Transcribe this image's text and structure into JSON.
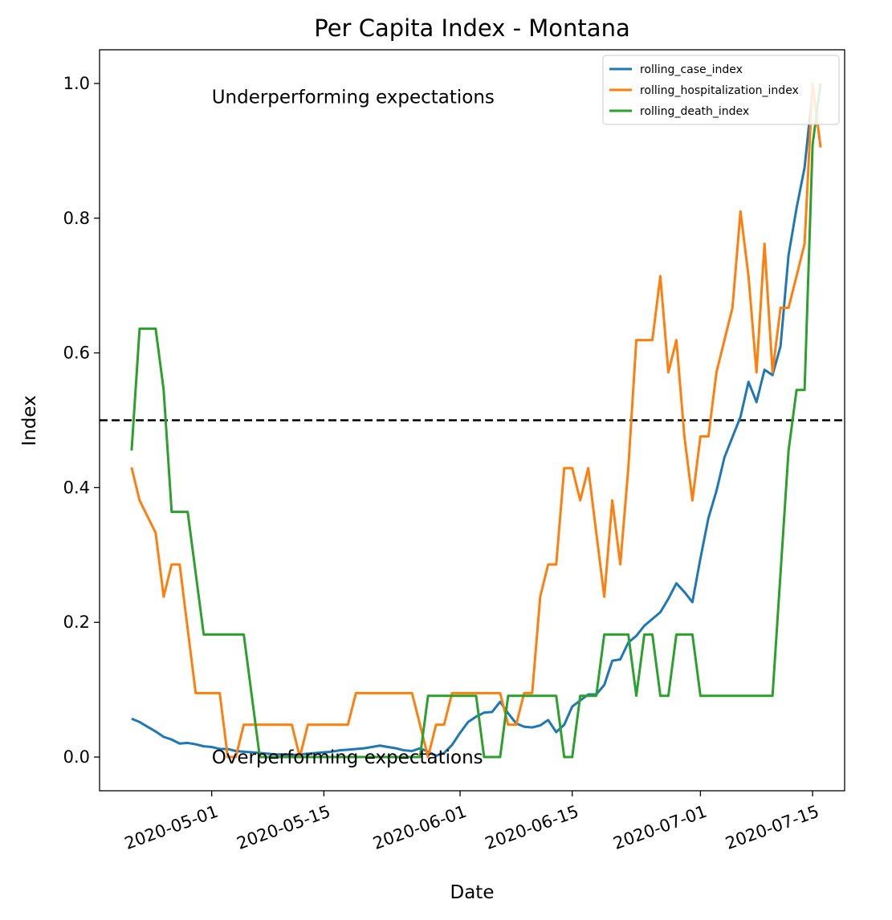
{
  "chart_data": {
    "type": "line",
    "title": "Per Capita Index - Montana",
    "xlabel": "Date",
    "ylabel": "Index",
    "xlim": [
      "2020-04-17",
      "2020-07-19"
    ],
    "ylim": [
      -0.05,
      1.05
    ],
    "x_ticks": [
      "2020-05-01",
      "2020-05-15",
      "2020-06-01",
      "2020-06-15",
      "2020-07-01",
      "2020-07-15"
    ],
    "x_tick_rotation": 20,
    "y_ticks": [
      "0.0",
      "0.2",
      "0.4",
      "0.6",
      "0.8",
      "1.0"
    ],
    "grid": false,
    "legend_position": "top-right",
    "reference_line": {
      "y": 0.5,
      "style": "dashed",
      "color": "#000000"
    },
    "annotations": [
      {
        "text": "Underperforming expectations",
        "x": "2020-05-01",
        "y": 0.98
      },
      {
        "text": "Overperforming expectations",
        "x": "2020-05-01",
        "y": 0.0
      }
    ],
    "series": [
      {
        "name": "rolling_case_index",
        "color": "#1f77b4",
        "points": [
          [
            "2020-04-21",
            0.057
          ],
          [
            "2020-04-22",
            0.052
          ],
          [
            "2020-04-23",
            0.045
          ],
          [
            "2020-04-24",
            0.038
          ],
          [
            "2020-04-25",
            0.03
          ],
          [
            "2020-04-26",
            0.026
          ],
          [
            "2020-04-27",
            0.02
          ],
          [
            "2020-04-28",
            0.021
          ],
          [
            "2020-04-29",
            0.019
          ],
          [
            "2020-04-30",
            0.016
          ],
          [
            "2020-05-01",
            0.015
          ],
          [
            "2020-05-02",
            0.012
          ],
          [
            "2020-05-03",
            0.012
          ],
          [
            "2020-05-04",
            0.009
          ],
          [
            "2020-05-05",
            0.008
          ],
          [
            "2020-05-06",
            0.007
          ],
          [
            "2020-05-07",
            0.006
          ],
          [
            "2020-05-08",
            0.005
          ],
          [
            "2020-05-09",
            0.004
          ],
          [
            "2020-05-10",
            0.004
          ],
          [
            "2020-05-11",
            0.003
          ],
          [
            "2020-05-12",
            0.004
          ],
          [
            "2020-05-13",
            0.005
          ],
          [
            "2020-05-14",
            0.006
          ],
          [
            "2020-05-15",
            0.007
          ],
          [
            "2020-05-16",
            0.008
          ],
          [
            "2020-05-17",
            0.01
          ],
          [
            "2020-05-18",
            0.011
          ],
          [
            "2020-05-19",
            0.012
          ],
          [
            "2020-05-20",
            0.013
          ],
          [
            "2020-05-21",
            0.015
          ],
          [
            "2020-05-22",
            0.017
          ],
          [
            "2020-05-23",
            0.015
          ],
          [
            "2020-05-24",
            0.013
          ],
          [
            "2020-05-25",
            0.01
          ],
          [
            "2020-05-26",
            0.009
          ],
          [
            "2020-05-27",
            0.013
          ],
          [
            "2020-05-28",
            0.008
          ],
          [
            "2020-05-29",
            0.002
          ],
          [
            "2020-05-30",
            0.006
          ],
          [
            "2020-05-31",
            0.018
          ],
          [
            "2020-06-01",
            0.036
          ],
          [
            "2020-06-02",
            0.052
          ],
          [
            "2020-06-03",
            0.06
          ],
          [
            "2020-06-04",
            0.066
          ],
          [
            "2020-06-05",
            0.067
          ],
          [
            "2020-06-06",
            0.082
          ],
          [
            "2020-06-07",
            0.065
          ],
          [
            "2020-06-08",
            0.05
          ],
          [
            "2020-06-09",
            0.045
          ],
          [
            "2020-06-10",
            0.044
          ],
          [
            "2020-06-11",
            0.047
          ],
          [
            "2020-06-12",
            0.055
          ],
          [
            "2020-06-13",
            0.037
          ],
          [
            "2020-06-14",
            0.048
          ],
          [
            "2020-06-15",
            0.075
          ],
          [
            "2020-06-16",
            0.084
          ],
          [
            "2020-06-17",
            0.093
          ],
          [
            "2020-06-18",
            0.093
          ],
          [
            "2020-06-19",
            0.107
          ],
          [
            "2020-06-20",
            0.143
          ],
          [
            "2020-06-21",
            0.145
          ],
          [
            "2020-06-22",
            0.17
          ],
          [
            "2020-06-23",
            0.18
          ],
          [
            "2020-06-24",
            0.195
          ],
          [
            "2020-06-25",
            0.205
          ],
          [
            "2020-06-26",
            0.215
          ],
          [
            "2020-06-27",
            0.235
          ],
          [
            "2020-06-28",
            0.258
          ],
          [
            "2020-06-29",
            0.245
          ],
          [
            "2020-06-30",
            0.23
          ],
          [
            "2020-07-01",
            0.295
          ],
          [
            "2020-07-02",
            0.355
          ],
          [
            "2020-07-03",
            0.395
          ],
          [
            "2020-07-04",
            0.445
          ],
          [
            "2020-07-05",
            0.475
          ],
          [
            "2020-07-06",
            0.505
          ],
          [
            "2020-07-07",
            0.557
          ],
          [
            "2020-07-08",
            0.527
          ],
          [
            "2020-07-09",
            0.575
          ],
          [
            "2020-07-10",
            0.567
          ],
          [
            "2020-07-11",
            0.61
          ],
          [
            "2020-07-12",
            0.745
          ],
          [
            "2020-07-13",
            0.815
          ],
          [
            "2020-07-14",
            0.875
          ],
          [
            "2020-07-15",
            0.99
          ]
        ]
      },
      {
        "name": "rolling_hospitalization_index",
        "color": "#ff7f0e",
        "points": [
          [
            "2020-04-21",
            0.43
          ],
          [
            "2020-04-22",
            0.381
          ],
          [
            "2020-04-23",
            0.357
          ],
          [
            "2020-04-24",
            0.333
          ],
          [
            "2020-04-25",
            0.238
          ],
          [
            "2020-04-26",
            0.286
          ],
          [
            "2020-04-27",
            0.286
          ],
          [
            "2020-04-28",
            0.19
          ],
          [
            "2020-04-29",
            0.095
          ],
          [
            "2020-04-30",
            0.095
          ],
          [
            "2020-05-01",
            0.095
          ],
          [
            "2020-05-02",
            0.095
          ],
          [
            "2020-05-03",
            0.0
          ],
          [
            "2020-05-04",
            0.0
          ],
          [
            "2020-05-05",
            0.048
          ],
          [
            "2020-05-06",
            0.048
          ],
          [
            "2020-05-07",
            0.048
          ],
          [
            "2020-05-08",
            0.048
          ],
          [
            "2020-05-09",
            0.048
          ],
          [
            "2020-05-10",
            0.048
          ],
          [
            "2020-05-11",
            0.048
          ],
          [
            "2020-05-12",
            0.0
          ],
          [
            "2020-05-13",
            0.048
          ],
          [
            "2020-05-14",
            0.048
          ],
          [
            "2020-05-15",
            0.048
          ],
          [
            "2020-05-16",
            0.048
          ],
          [
            "2020-05-17",
            0.048
          ],
          [
            "2020-05-18",
            0.048
          ],
          [
            "2020-05-19",
            0.095
          ],
          [
            "2020-05-20",
            0.095
          ],
          [
            "2020-05-21",
            0.095
          ],
          [
            "2020-05-22",
            0.095
          ],
          [
            "2020-05-23",
            0.095
          ],
          [
            "2020-05-24",
            0.095
          ],
          [
            "2020-05-25",
            0.095
          ],
          [
            "2020-05-26",
            0.095
          ],
          [
            "2020-05-27",
            0.048
          ],
          [
            "2020-05-28",
            0.0
          ],
          [
            "2020-05-29",
            0.048
          ],
          [
            "2020-05-30",
            0.048
          ],
          [
            "2020-05-31",
            0.095
          ],
          [
            "2020-06-01",
            0.095
          ],
          [
            "2020-06-02",
            0.095
          ],
          [
            "2020-06-03",
            0.095
          ],
          [
            "2020-06-04",
            0.095
          ],
          [
            "2020-06-05",
            0.095
          ],
          [
            "2020-06-06",
            0.095
          ],
          [
            "2020-06-07",
            0.048
          ],
          [
            "2020-06-08",
            0.048
          ],
          [
            "2020-06-09",
            0.095
          ],
          [
            "2020-06-10",
            0.095
          ],
          [
            "2020-06-11",
            0.238
          ],
          [
            "2020-06-12",
            0.286
          ],
          [
            "2020-06-13",
            0.286
          ],
          [
            "2020-06-14",
            0.429
          ],
          [
            "2020-06-15",
            0.429
          ],
          [
            "2020-06-16",
            0.381
          ],
          [
            "2020-06-17",
            0.429
          ],
          [
            "2020-06-18",
            0.333
          ],
          [
            "2020-06-19",
            0.238
          ],
          [
            "2020-06-20",
            0.381
          ],
          [
            "2020-06-21",
            0.286
          ],
          [
            "2020-06-22",
            0.429
          ],
          [
            "2020-06-23",
            0.619
          ],
          [
            "2020-06-24",
            0.619
          ],
          [
            "2020-06-25",
            0.619
          ],
          [
            "2020-06-26",
            0.714
          ],
          [
            "2020-06-27",
            0.571
          ],
          [
            "2020-06-28",
            0.619
          ],
          [
            "2020-06-29",
            0.476
          ],
          [
            "2020-06-30",
            0.381
          ],
          [
            "2020-07-01",
            0.476
          ],
          [
            "2020-07-02",
            0.476
          ],
          [
            "2020-07-03",
            0.571
          ],
          [
            "2020-07-04",
            0.619
          ],
          [
            "2020-07-05",
            0.667
          ],
          [
            "2020-07-06",
            0.81
          ],
          [
            "2020-07-07",
            0.714
          ],
          [
            "2020-07-08",
            0.571
          ],
          [
            "2020-07-09",
            0.762
          ],
          [
            "2020-07-10",
            0.571
          ],
          [
            "2020-07-11",
            0.667
          ],
          [
            "2020-07-12",
            0.667
          ],
          [
            "2020-07-13",
            0.714
          ],
          [
            "2020-07-14",
            0.762
          ],
          [
            "2020-07-15",
            1.0
          ],
          [
            "2020-07-16",
            0.905
          ]
        ]
      },
      {
        "name": "rolling_death_index",
        "color": "#2ca02c",
        "points": [
          [
            "2020-04-21",
            0.455
          ],
          [
            "2020-04-22",
            0.636
          ],
          [
            "2020-04-23",
            0.636
          ],
          [
            "2020-04-24",
            0.636
          ],
          [
            "2020-04-25",
            0.545
          ],
          [
            "2020-04-26",
            0.364
          ],
          [
            "2020-04-27",
            0.364
          ],
          [
            "2020-04-28",
            0.364
          ],
          [
            "2020-04-29",
            0.273
          ],
          [
            "2020-04-30",
            0.182
          ],
          [
            "2020-05-01",
            0.182
          ],
          [
            "2020-05-02",
            0.182
          ],
          [
            "2020-05-03",
            0.182
          ],
          [
            "2020-05-04",
            0.182
          ],
          [
            "2020-05-05",
            0.182
          ],
          [
            "2020-05-06",
            0.091
          ],
          [
            "2020-05-07",
            0.0
          ],
          [
            "2020-05-08",
            0.0
          ],
          [
            "2020-05-09",
            0.0
          ],
          [
            "2020-05-10",
            0.0
          ],
          [
            "2020-05-11",
            0.0
          ],
          [
            "2020-05-12",
            0.0
          ],
          [
            "2020-05-13",
            0.0
          ],
          [
            "2020-05-14",
            0.0
          ],
          [
            "2020-05-15",
            0.0
          ],
          [
            "2020-05-16",
            0.0
          ],
          [
            "2020-05-17",
            0.0
          ],
          [
            "2020-05-18",
            0.0
          ],
          [
            "2020-05-19",
            0.0
          ],
          [
            "2020-05-20",
            0.0
          ],
          [
            "2020-05-21",
            0.0
          ],
          [
            "2020-05-22",
            0.0
          ],
          [
            "2020-05-23",
            0.0
          ],
          [
            "2020-05-24",
            0.0
          ],
          [
            "2020-05-25",
            0.0
          ],
          [
            "2020-05-26",
            0.0
          ],
          [
            "2020-05-27",
            0.0
          ],
          [
            "2020-05-28",
            0.091
          ],
          [
            "2020-05-29",
            0.091
          ],
          [
            "2020-05-30",
            0.091
          ],
          [
            "2020-05-31",
            0.091
          ],
          [
            "2020-06-01",
            0.091
          ],
          [
            "2020-06-02",
            0.091
          ],
          [
            "2020-06-03",
            0.091
          ],
          [
            "2020-06-04",
            0.0
          ],
          [
            "2020-06-05",
            0.0
          ],
          [
            "2020-06-06",
            0.0
          ],
          [
            "2020-06-07",
            0.091
          ],
          [
            "2020-06-08",
            0.091
          ],
          [
            "2020-06-09",
            0.091
          ],
          [
            "2020-06-10",
            0.091
          ],
          [
            "2020-06-11",
            0.091
          ],
          [
            "2020-06-12",
            0.091
          ],
          [
            "2020-06-13",
            0.091
          ],
          [
            "2020-06-14",
            0.0
          ],
          [
            "2020-06-15",
            0.0
          ],
          [
            "2020-06-16",
            0.091
          ],
          [
            "2020-06-17",
            0.091
          ],
          [
            "2020-06-18",
            0.091
          ],
          [
            "2020-06-19",
            0.182
          ],
          [
            "2020-06-20",
            0.182
          ],
          [
            "2020-06-21",
            0.182
          ],
          [
            "2020-06-22",
            0.182
          ],
          [
            "2020-06-23",
            0.091
          ],
          [
            "2020-06-24",
            0.182
          ],
          [
            "2020-06-25",
            0.182
          ],
          [
            "2020-06-26",
            0.091
          ],
          [
            "2020-06-27",
            0.091
          ],
          [
            "2020-06-28",
            0.182
          ],
          [
            "2020-06-29",
            0.182
          ],
          [
            "2020-06-30",
            0.182
          ],
          [
            "2020-07-01",
            0.091
          ],
          [
            "2020-07-02",
            0.091
          ],
          [
            "2020-07-03",
            0.091
          ],
          [
            "2020-07-04",
            0.091
          ],
          [
            "2020-07-05",
            0.091
          ],
          [
            "2020-07-06",
            0.091
          ],
          [
            "2020-07-07",
            0.091
          ],
          [
            "2020-07-08",
            0.091
          ],
          [
            "2020-07-09",
            0.091
          ],
          [
            "2020-07-10",
            0.091
          ],
          [
            "2020-07-11",
            0.273
          ],
          [
            "2020-07-12",
            0.455
          ],
          [
            "2020-07-13",
            0.545
          ],
          [
            "2020-07-14",
            0.545
          ],
          [
            "2020-07-15",
            0.909
          ],
          [
            "2020-07-16",
            1.0
          ]
        ]
      }
    ]
  }
}
